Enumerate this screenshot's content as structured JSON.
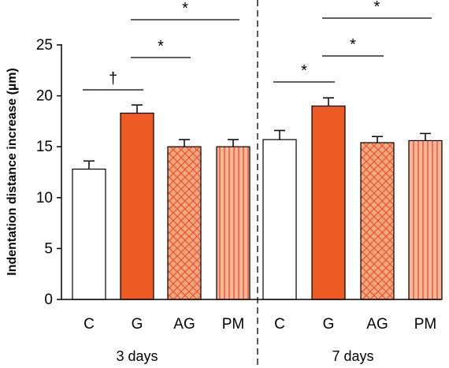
{
  "chart_data": {
    "type": "bar",
    "ylabel": "Indentation distance increase (µm)",
    "ylim": [
      0,
      25
    ],
    "yticks": [
      "0",
      "5",
      "10",
      "15",
      "20",
      "25"
    ],
    "grid": false,
    "groups": [
      {
        "label": "3 days",
        "categories": [
          "C",
          "G",
          "AG",
          "PM"
        ],
        "values": [
          12.8,
          18.3,
          15.0,
          15.0
        ],
        "errors": [
          0.8,
          0.8,
          0.7,
          0.7
        ]
      },
      {
        "label": "7 days",
        "categories": [
          "C",
          "G",
          "AG",
          "PM"
        ],
        "values": [
          15.7,
          19.0,
          15.4,
          15.6
        ],
        "errors": [
          0.9,
          0.8,
          0.6,
          0.7
        ]
      }
    ],
    "fills": [
      "white",
      "solid",
      "crosshatch",
      "vertical-stripes"
    ],
    "significance": [
      {
        "group": 0,
        "from": 0,
        "to": 1,
        "label": "†"
      },
      {
        "group": 0,
        "from": 1,
        "to": 2,
        "label": "*"
      },
      {
        "group": 0,
        "from": 1,
        "to": 3,
        "label": "*"
      },
      {
        "group": 1,
        "from": 0,
        "to": 1,
        "label": "*"
      },
      {
        "group": 1,
        "from": 1,
        "to": 2,
        "label": "*"
      },
      {
        "group": 1,
        "from": 1,
        "to": 3,
        "label": "*"
      }
    ],
    "colors": {
      "solid": "#ee5a24",
      "hatch_bg": "#f4a583",
      "hatch_line": "#e2521f",
      "stripe_bg": "#f6b49b",
      "outline": "#000000"
    }
  }
}
